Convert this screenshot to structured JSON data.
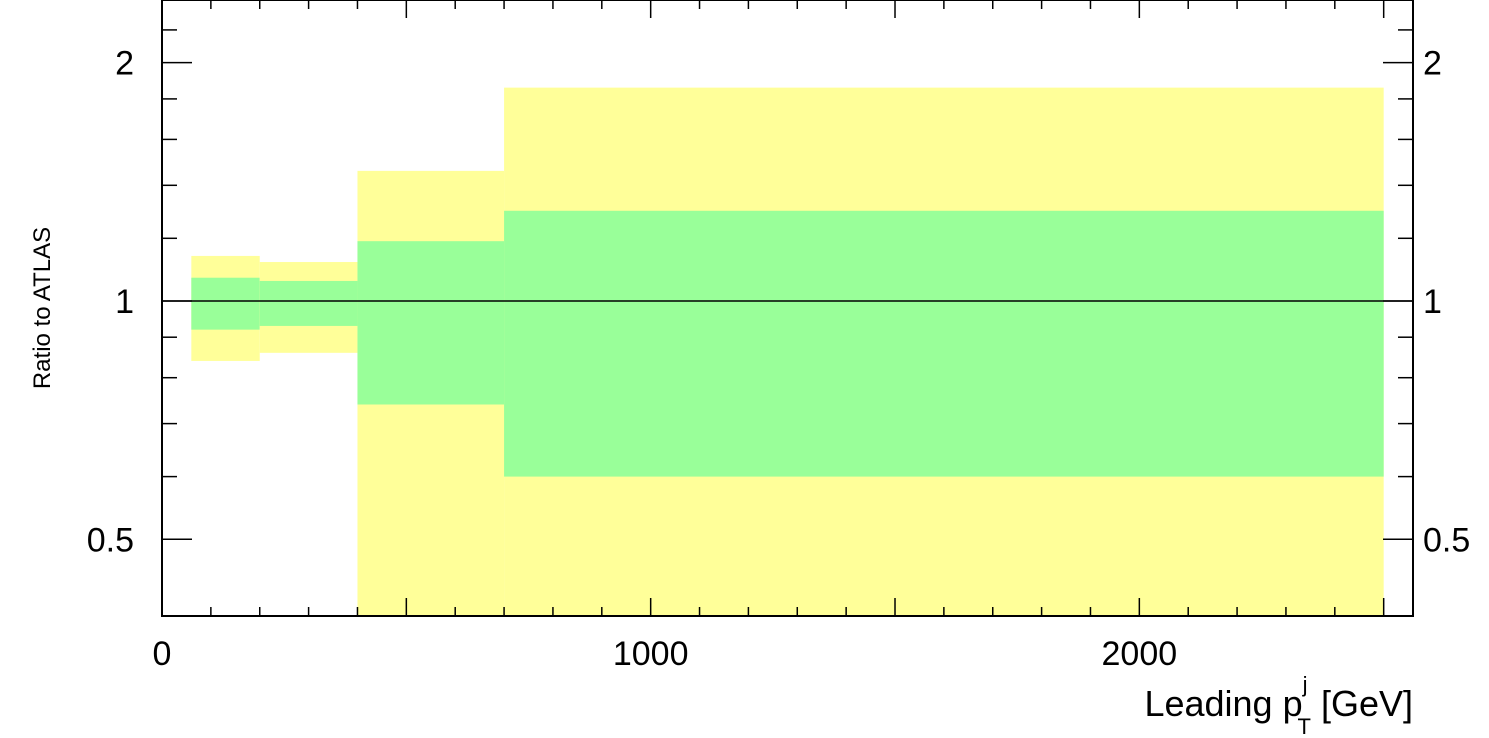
{
  "chart_data": {
    "type": "area",
    "title": "",
    "xlabel": {
      "prefix": "Leading p",
      "superscript": "j",
      "subscript": "T",
      "suffix": " [GeV]"
    },
    "ylabel": "Ratio to ATLAS",
    "xlim": [
      0,
      2560
    ],
    "ylim": [
      0.4,
      2.4
    ],
    "y_scale": "log",
    "x_ticks": [
      0,
      1000,
      2000
    ],
    "x_tick_labels": [
      "0",
      "1000",
      "2000"
    ],
    "y_ticks": [
      0.5,
      1,
      2
    ],
    "y_tick_labels": [
      "0.5",
      "1",
      "2"
    ],
    "reference_line": 1,
    "bins": [
      {
        "x_low": 60,
        "x_high": 200,
        "green_low": 0.92,
        "green_high": 1.07,
        "yellow_low": 0.84,
        "yellow_high": 1.14
      },
      {
        "x_low": 200,
        "x_high": 400,
        "green_low": 0.93,
        "green_high": 1.06,
        "yellow_low": 0.86,
        "yellow_high": 1.12
      },
      {
        "x_low": 400,
        "x_high": 700,
        "green_low": 0.74,
        "green_high": 1.19,
        "yellow_low": 0.4,
        "yellow_high": 1.46
      },
      {
        "x_low": 700,
        "x_high": 2500,
        "green_low": 0.6,
        "green_high": 1.3,
        "yellow_low": 0.4,
        "yellow_high": 1.86
      }
    ],
    "colors": {
      "green_band": "#99ff99",
      "yellow_band": "#ffff99",
      "reference_line": "#000000",
      "axes": "#000000"
    },
    "grid": false,
    "legend": "none"
  }
}
